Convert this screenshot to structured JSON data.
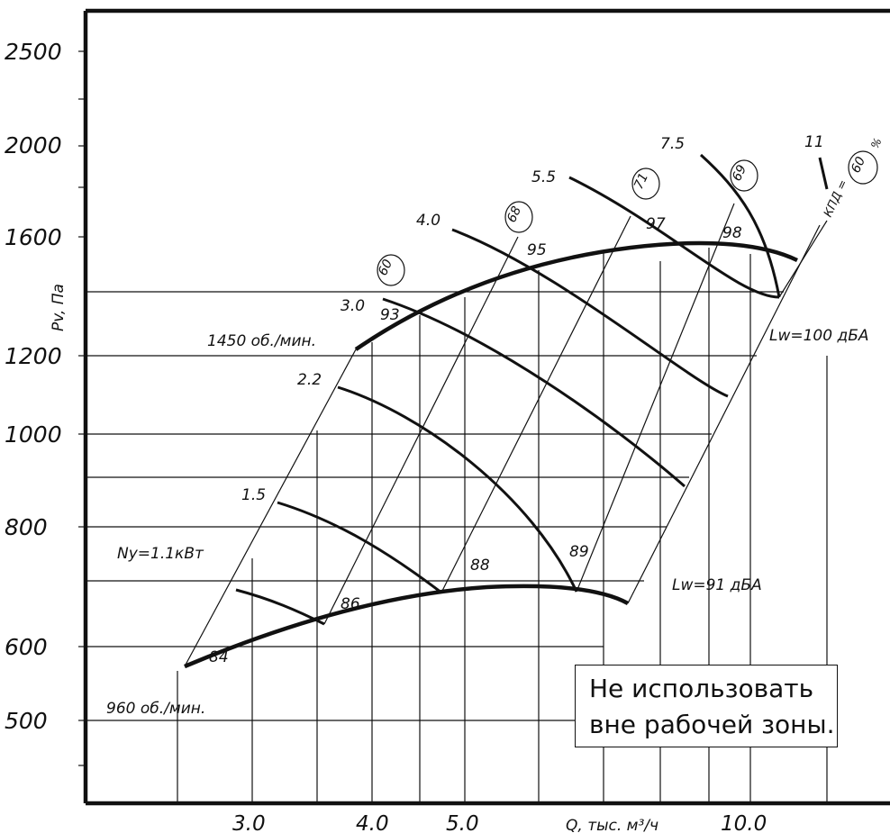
{
  "chart_data": {
    "type": "line",
    "xlabel": "Q, тыс. м³/ч",
    "ylabel": "Pv, Па",
    "x_ticks": [
      "3.0",
      "4.0",
      "5.0",
      "10.0"
    ],
    "y_ticks": [
      "500",
      "600",
      "800",
      "1000",
      "1200",
      "1600",
      "2000",
      "2500"
    ],
    "series": [
      {
        "name": "1450 об./мин.",
        "x": [
          3.8,
          4.5,
          5.5,
          6.5,
          7.5,
          8.5,
          9.5,
          10.6
        ],
        "y": [
          1210,
          1330,
          1440,
          1520,
          1560,
          1580,
          1570,
          1520
        ]
      },
      {
        "name": "960 об./мин.",
        "x": [
          2.45,
          3.0,
          3.5,
          4.0,
          4.5,
          5.0,
          5.5,
          6.0,
          6.5,
          7.3
        ],
        "y": [
          540,
          580,
          620,
          650,
          675,
          695,
          705,
          705,
          700,
          670
        ]
      }
    ],
    "power_curves": [
      {
        "label": "Nу=1.1кВт",
        "x": [
          2.6,
          3.6
        ],
        "y": [
          700,
          640
        ]
      },
      {
        "label": "1.5",
        "x": [
          3.1,
          3.8,
          4.5,
          5.0
        ],
        "y": [
          860,
          800,
          740,
          700
        ]
      },
      {
        "label": "2.2",
        "x": [
          3.7,
          4.4,
          5.1,
          5.9,
          6.5
        ],
        "y": [
          1130,
          1070,
          990,
          880,
          710
        ]
      },
      {
        "label": "3.0",
        "x": [
          3.9,
          4.6,
          5.4,
          6.1,
          6.8,
          7.5
        ],
        "y": [
          1330,
          1260,
          1160,
          1040,
          920,
          860
        ]
      },
      {
        "label": "4.0",
        "x": [
          4.5,
          5.2,
          6.0,
          6.8,
          7.6,
          8.3
        ],
        "y": [
          1650,
          1560,
          1430,
          1250,
          1050,
          890
        ]
      },
      {
        "label": "5.5",
        "x": [
          5.4,
          6.2,
          7.1,
          8.0,
          8.6
        ],
        "y": [
          1860,
          1760,
          1600,
          1360,
          1120
        ]
      },
      {
        "label": "7.5",
        "x": [
          7.1,
          7.9,
          8.7,
          9.4
        ],
        "y": [
          2000,
          1880,
          1670,
          1330
        ]
      },
      {
        "label": "11",
        "x": [
          9.9,
          10.0
        ],
        "y": [
          1870,
          1790
        ]
      }
    ],
    "noise_labels": [
      "84",
      "86",
      "88",
      "89",
      "93",
      "95",
      "97",
      "98"
    ],
    "efficiency_labels": [
      "60",
      "68",
      "71",
      "69",
      "60"
    ],
    "efficiency_axis_label": "КПД =",
    "efficiency_unit": "%",
    "lw_labels": [
      "Lw=100 дБА",
      "Lw=91 дБА"
    ],
    "speed_labels": [
      "1450 об./мин.",
      "960 об./мин."
    ]
  },
  "note": {
    "line1": "Не использовать",
    "line2": "вне рабочей зоны."
  }
}
